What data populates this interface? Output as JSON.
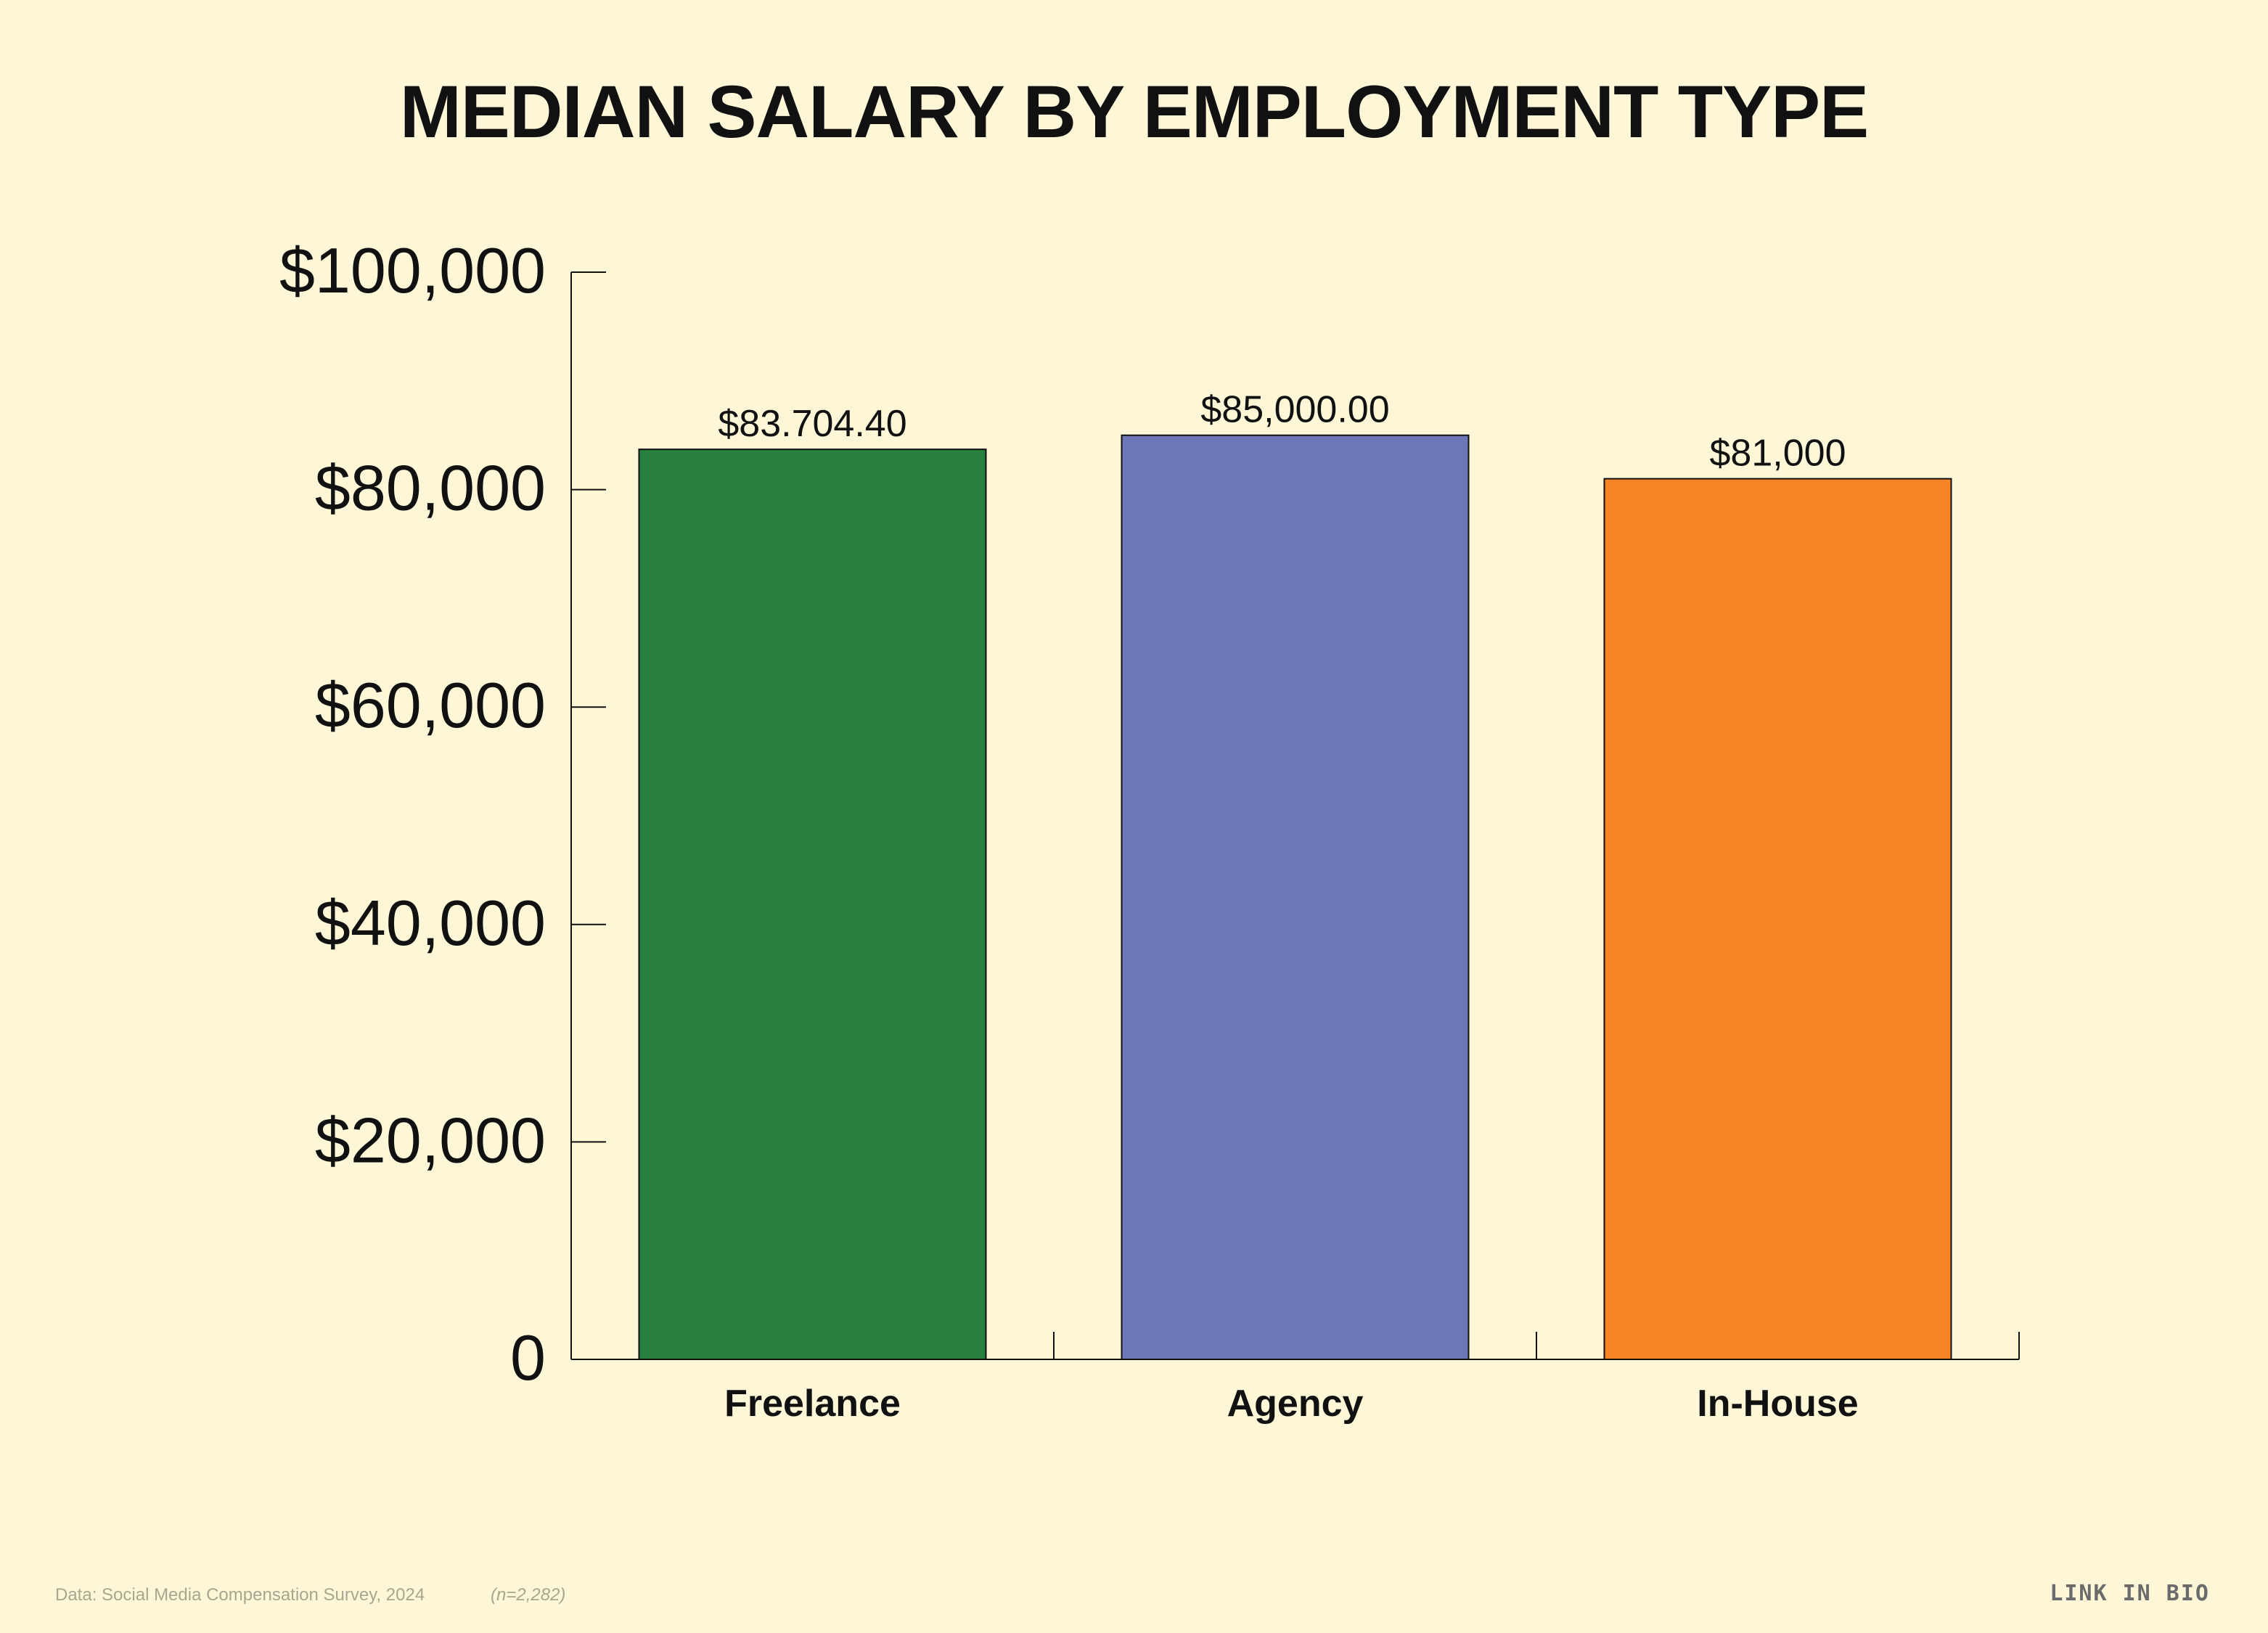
{
  "chart_data": {
    "type": "bar",
    "title": "MEDIAN SALARY BY EMPLOYMENT TYPE",
    "categories": [
      "Freelance",
      "Agency",
      "In-House"
    ],
    "values": [
      83704.4,
      85000.0,
      81000
    ],
    "data_labels": [
      "$83.704.40",
      "$85,000.00",
      "$81,000"
    ],
    "colors": [
      "#288040",
      "#6b77b7",
      "#f48424"
    ],
    "ylim": [
      0,
      100000
    ],
    "yticks": [
      0,
      20000,
      40000,
      60000,
      80000,
      100000
    ],
    "ytick_labels": [
      "0",
      "$20,000",
      "$40,000",
      "$60,000",
      "$80,000",
      "$100,000"
    ],
    "xlabel": "",
    "ylabel": "",
    "grid": false,
    "legend": "none"
  },
  "footer": {
    "source": "Data: Social Media Compensation Survey, 2024",
    "sample": "(n=2,282)"
  },
  "brand": {
    "logo_text": "LINK IN BIO"
  }
}
